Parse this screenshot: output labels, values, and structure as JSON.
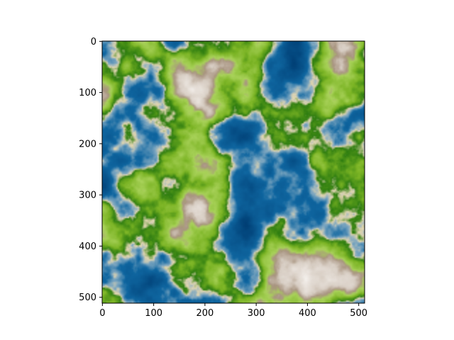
{
  "figure": {
    "background": "#ffffff"
  },
  "chart_data": {
    "type": "heatmap",
    "title": "",
    "xlabel": "",
    "ylabel": "",
    "image_size": [
      512,
      512
    ],
    "xlim": [
      0,
      511
    ],
    "ylim": [
      511,
      0
    ],
    "x_ticks": [
      0,
      100,
      200,
      300,
      400,
      500
    ],
    "y_ticks": [
      0,
      100,
      200,
      300,
      400,
      500
    ],
    "x_tick_labels": [
      "0",
      "100",
      "200",
      "300",
      "400",
      "500"
    ],
    "y_tick_labels": [
      "0",
      "100",
      "200",
      "300",
      "400",
      "500"
    ],
    "grid": false,
    "legend": "none",
    "colormap": [
      {
        "level": 0.0,
        "color": "#003f75"
      },
      {
        "level": 0.3,
        "color": "#0f66a0"
      },
      {
        "level": 0.38,
        "color": "#7ca6c0"
      },
      {
        "level": 0.42,
        "color": "#e2d6b2"
      },
      {
        "level": 0.46,
        "color": "#2e7d10"
      },
      {
        "level": 0.55,
        "color": "#7bb424"
      },
      {
        "level": 0.66,
        "color": "#a9d25a"
      },
      {
        "level": 0.72,
        "color": "#a89480"
      },
      {
        "level": 0.82,
        "color": "#d8cec4"
      },
      {
        "level": 1.0,
        "color": "#f4f0ec"
      }
    ]
  }
}
